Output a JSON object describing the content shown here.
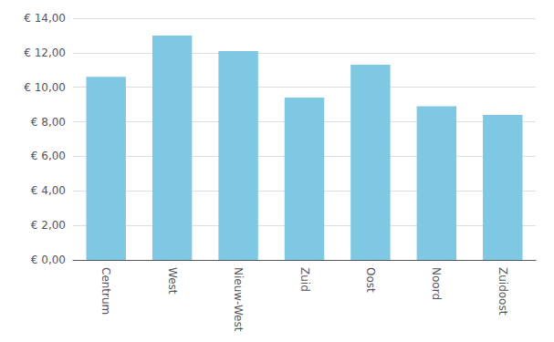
{
  "chart_data": {
    "type": "bar",
    "categories": [
      "Centrum",
      "West",
      "Nieuw-West",
      "Zuid",
      "Oost",
      "Noord",
      "Zuidoost"
    ],
    "values": [
      10.6,
      13.0,
      12.1,
      9.4,
      11.3,
      8.9,
      8.4
    ],
    "color": "#7EC8E3",
    "ylim": [
      0,
      14
    ],
    "yticks": [
      {
        "value": 0,
        "label": "€ 0,00"
      },
      {
        "value": 2,
        "label": "€ 2,00"
      },
      {
        "value": 4,
        "label": "€ 4,00"
      },
      {
        "value": 6,
        "label": "€ 6,00"
      },
      {
        "value": 8,
        "label": "€ 8,00"
      },
      {
        "value": 10,
        "label": "€ 10,00"
      },
      {
        "value": 12,
        "label": "€ 12,00"
      },
      {
        "value": 14,
        "label": "€ 14,00"
      }
    ],
    "grid": true
  }
}
